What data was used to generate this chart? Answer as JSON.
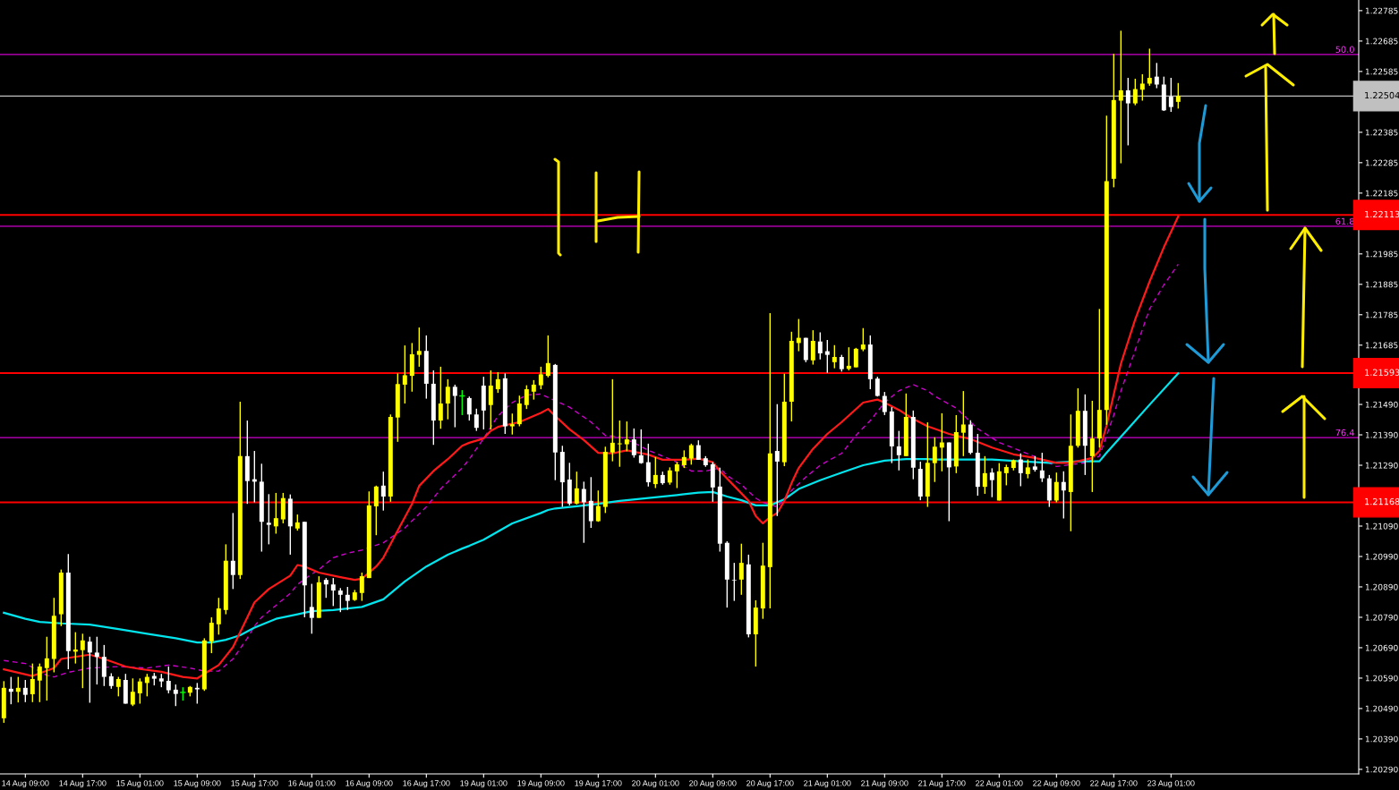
{
  "chart_data": {
    "type": "candlestick",
    "categories": [
      null,
      null,
      null,
      "14 Aug 09:00",
      null,
      null,
      null,
      null,
      null,
      null,
      null,
      "14 Aug 17:00",
      null,
      null,
      null,
      null,
      null,
      null,
      null,
      "15 Aug 01:00",
      null,
      null,
      null,
      null,
      null,
      null,
      null,
      "15 Aug 09:00",
      null,
      null,
      null,
      null,
      null,
      null,
      null,
      "15 Aug 17:00",
      null,
      null,
      null,
      null,
      null,
      null,
      null,
      "16 Aug 01:00",
      null,
      null,
      null,
      null,
      null,
      null,
      null,
      "16 Aug 09:00",
      null,
      null,
      null,
      null,
      null,
      null,
      null,
      "16 Aug 17:00",
      null,
      null,
      null,
      null,
      null,
      null,
      null,
      "19 Aug 01:00",
      null,
      null,
      null,
      null,
      null,
      null,
      null,
      "19 Aug 09:00",
      null,
      null,
      null,
      null,
      null,
      null,
      null,
      "19 Aug 17:00",
      null,
      null,
      null,
      null,
      null,
      null,
      null,
      "20 Aug 01:00",
      null,
      null,
      null,
      null,
      null,
      null,
      null,
      "20 Aug 09:00",
      null,
      null,
      null,
      null,
      null,
      null,
      null,
      "20 Aug 17:00",
      null,
      null,
      null,
      null,
      null,
      null,
      null,
      "21 Aug 01:00",
      null,
      null,
      null,
      null,
      null,
      null,
      null,
      "21 Aug 09:00",
      null,
      null,
      null,
      null,
      null,
      null,
      null,
      "21 Aug 17:00",
      null,
      null,
      null,
      null,
      null,
      null,
      null,
      "22 Aug 01:00",
      null,
      null,
      null,
      null,
      null,
      null,
      null,
      "22 Aug 09:00",
      null,
      null,
      null,
      null,
      null,
      null,
      null,
      "22 Aug 17:00",
      null,
      null,
      null,
      null,
      null,
      null,
      null,
      "23 Aug 01:00",
      null
    ],
    "ohlc": [
      [
        1.20458,
        1.2058,
        1.20443,
        1.20558
      ],
      [
        1.20555,
        1.20594,
        1.20504,
        1.20545
      ],
      [
        1.20545,
        1.20594,
        1.2051,
        1.20558
      ],
      [
        1.20558,
        1.20584,
        1.20511,
        1.20535
      ],
      [
        1.20537,
        1.20638,
        1.20511,
        1.20587
      ],
      [
        1.20582,
        1.20638,
        1.20511,
        1.20628
      ],
      [
        1.20623,
        1.20726,
        1.20516,
        1.20655
      ],
      [
        1.20653,
        1.20854,
        1.20609,
        1.20795
      ],
      [
        1.208,
        1.20947,
        1.20761,
        1.20937
      ],
      [
        1.20937,
        1.20998,
        1.20619,
        1.20679
      ],
      [
        1.20677,
        1.20741,
        1.20638,
        1.20684
      ],
      [
        1.20682,
        1.20736,
        1.20557,
        1.20714
      ],
      [
        1.2071,
        1.20726,
        1.20509,
        1.20674
      ],
      [
        1.20674,
        1.20726,
        1.20569,
        1.2066
      ],
      [
        1.2066,
        1.20699,
        1.20564,
        1.20594
      ],
      [
        1.20596,
        1.20606,
        1.20555,
        1.20564
      ],
      [
        1.20561,
        1.20594,
        1.2053,
        1.20587
      ],
      [
        1.20584,
        1.20604,
        1.20506,
        1.20506
      ],
      [
        1.20503,
        1.20589,
        1.20498,
        1.20545
      ],
      [
        1.2054,
        1.20589,
        1.20506,
        1.20579
      ],
      [
        1.20574,
        1.20604,
        1.2053,
        1.20594
      ],
      [
        1.20597,
        1.20607,
        1.20566,
        1.20588
      ],
      [
        1.20589,
        1.20604,
        1.2056,
        1.20579
      ],
      [
        1.20581,
        1.20628,
        1.2054,
        1.2055
      ],
      [
        1.20552,
        1.20569,
        1.20498,
        1.20538
      ],
      [
        1.20543,
        1.2056,
        1.20516,
        1.20543
      ],
      [
        1.20542,
        1.20564,
        1.2053,
        1.20561
      ],
      [
        1.20558,
        1.20574,
        1.20506,
        1.20553
      ],
      [
        1.20553,
        1.20721,
        1.20548,
        1.20714
      ],
      [
        1.20711,
        1.2079,
        1.20672,
        1.20772
      ],
      [
        1.20767,
        1.20854,
        1.20733,
        1.20819
      ],
      [
        1.20814,
        1.2103,
        1.208,
        1.20976
      ],
      [
        1.20976,
        1.21133,
        1.20883,
        1.20929
      ],
      [
        1.20929,
        1.21499,
        1.20916,
        1.2132
      ],
      [
        1.2132,
        1.21437,
        1.21163,
        1.21238
      ],
      [
        1.21244,
        1.21337,
        1.21168,
        1.21236
      ],
      [
        1.21236,
        1.21295,
        1.21006,
        1.21104
      ],
      [
        1.21101,
        1.21195,
        1.2103,
        1.21094
      ],
      [
        1.21089,
        1.21199,
        1.21065,
        1.21116
      ],
      [
        1.21112,
        1.21199,
        1.21099,
        1.21182
      ],
      [
        1.2118,
        1.21194,
        1.20996,
        1.21089
      ],
      [
        1.21082,
        1.21128,
        1.21075,
        1.21102
      ],
      [
        1.21104,
        1.21104,
        1.2079,
        1.20895
      ],
      [
        1.20824,
        1.209,
        1.20736,
        1.20788
      ],
      [
        1.20788,
        1.20925,
        1.20788,
        1.20905
      ],
      [
        1.20913,
        1.20919,
        1.20854,
        1.20898
      ],
      [
        1.20898,
        1.20919,
        1.20827,
        1.20878
      ],
      [
        1.20878,
        1.20886,
        1.20807,
        1.20864
      ],
      [
        1.20864,
        1.2089,
        1.20814,
        1.20844
      ],
      [
        1.20847,
        1.2088,
        1.20844,
        1.20872
      ],
      [
        1.2087,
        1.20937,
        1.20844,
        1.20925
      ],
      [
        1.20919,
        1.21204,
        1.20919,
        1.21158
      ],
      [
        1.21155,
        1.21223,
        1.2106,
        1.2122
      ],
      [
        1.21223,
        1.21269,
        1.21141,
        1.21187
      ],
      [
        1.21187,
        1.21457,
        1.2117,
        1.21449
      ],
      [
        1.21447,
        1.21592,
        1.21367,
        1.21557
      ],
      [
        1.21555,
        1.21684,
        1.21493,
        1.21586
      ],
      [
        1.21584,
        1.21692,
        1.21532,
        1.21655
      ],
      [
        1.21653,
        1.21743,
        1.21614,
        1.21666
      ],
      [
        1.21666,
        1.21717,
        1.21509,
        1.21558
      ],
      [
        1.21558,
        1.21602,
        1.21357,
        1.21437
      ],
      [
        1.21437,
        1.21614,
        1.2141,
        1.21493
      ],
      [
        1.21493,
        1.21573,
        1.21441,
        1.21548
      ],
      [
        1.21548,
        1.21555,
        1.21415,
        1.21518
      ],
      [
        1.21518,
        1.21537,
        1.21455,
        1.21518
      ],
      [
        1.21511,
        1.21516,
        1.21437,
        1.21457
      ],
      [
        1.21457,
        1.21476,
        1.21403,
        1.21413
      ],
      [
        1.21552,
        1.21581,
        1.21408,
        1.2147
      ],
      [
        1.21488,
        1.21602,
        1.21408,
        1.21552
      ],
      [
        1.2154,
        1.21596,
        1.21528,
        1.21573
      ],
      [
        1.21576,
        1.21592,
        1.21393,
        1.21418
      ],
      [
        1.21418,
        1.2146,
        1.21391,
        1.21425
      ],
      [
        1.21425,
        1.21519,
        1.21418,
        1.21493
      ],
      [
        1.21488,
        1.21553,
        1.21475,
        1.2154
      ],
      [
        1.21532,
        1.2157,
        1.21506,
        1.21555
      ],
      [
        1.21553,
        1.21614,
        1.2154,
        1.21589
      ],
      [
        1.21584,
        1.21717,
        1.21579,
        1.21626
      ],
      [
        1.2162,
        1.21623,
        1.21241,
        1.21332
      ],
      [
        1.21334,
        1.21354,
        1.21153,
        1.21234
      ],
      [
        1.21243,
        1.21298,
        1.21158,
        1.21164
      ],
      [
        1.21164,
        1.21269,
        1.21161,
        1.21214
      ],
      [
        1.21212,
        1.21236,
        1.21035,
        1.21168
      ],
      [
        1.21173,
        1.21251,
        1.21084,
        1.21106
      ],
      [
        1.21106,
        1.21207,
        1.21104,
        1.21156
      ],
      [
        1.21153,
        1.21351,
        1.21133,
        1.21334
      ],
      [
        1.21332,
        1.21573,
        1.21303,
        1.21364
      ],
      [
        1.21359,
        1.21437,
        1.21285,
        1.21362
      ],
      [
        1.21359,
        1.21434,
        1.21336,
        1.21375
      ],
      [
        1.21375,
        1.21411,
        1.21315,
        1.21323
      ],
      [
        1.21323,
        1.21408,
        1.21295,
        1.21297
      ],
      [
        1.213,
        1.21361,
        1.2122,
        1.21234
      ],
      [
        1.21228,
        1.21317,
        1.21215,
        1.21258
      ],
      [
        1.21258,
        1.21269,
        1.21226,
        1.21231
      ],
      [
        1.21233,
        1.21283,
        1.21226,
        1.21273
      ],
      [
        1.2127,
        1.213,
        1.21215,
        1.21293
      ],
      [
        1.2129,
        1.21339,
        1.21281,
        1.21317
      ],
      [
        1.21312,
        1.21361,
        1.21292,
        1.21356
      ],
      [
        1.21356,
        1.21372,
        1.21308,
        1.21308
      ],
      [
        1.21313,
        1.2132,
        1.21285,
        1.2129
      ],
      [
        1.21293,
        1.213,
        1.2117,
        1.21217
      ],
      [
        1.2122,
        1.21282,
        1.21006,
        1.21032
      ],
      [
        1.21035,
        1.2104,
        1.20822,
        1.20914
      ],
      [
        1.20913,
        1.20969,
        1.20844,
        1.20911
      ],
      [
        1.20914,
        1.21032,
        1.20864,
        1.20969
      ],
      [
        1.20964,
        1.20996,
        1.20724,
        1.20734
      ],
      [
        1.20734,
        1.20846,
        1.20628,
        1.20822
      ],
      [
        1.20819,
        1.21035,
        1.20785,
        1.2096
      ],
      [
        1.20955,
        1.2179,
        1.20819,
        1.21329
      ],
      [
        1.21337,
        1.21491,
        1.21123,
        1.21302
      ],
      [
        1.213,
        1.21591,
        1.21287,
        1.21499
      ],
      [
        1.21499,
        1.21729,
        1.21434,
        1.21699
      ],
      [
        1.21692,
        1.21771,
        1.21665,
        1.21709
      ],
      [
        1.21709,
        1.21709,
        1.21629,
        1.21636
      ],
      [
        1.21635,
        1.21734,
        1.21621,
        1.21699
      ],
      [
        1.21697,
        1.21727,
        1.21638,
        1.21658
      ],
      [
        1.21665,
        1.21702,
        1.21594,
        1.21653
      ],
      [
        1.21629,
        1.21685,
        1.21609,
        1.21646
      ],
      [
        1.21646,
        1.21653,
        1.21598,
        1.21606
      ],
      [
        1.21607,
        1.21678,
        1.21602,
        1.21617
      ],
      [
        1.21612,
        1.21676,
        1.21612,
        1.21673
      ],
      [
        1.21671,
        1.21741,
        1.21665,
        1.21687
      ],
      [
        1.21687,
        1.21717,
        1.2154,
        1.21573
      ],
      [
        1.21575,
        1.21581,
        1.21516,
        1.21518
      ],
      [
        1.21518,
        1.21531,
        1.21455,
        1.21465
      ],
      [
        1.21467,
        1.21481,
        1.21297,
        1.21352
      ],
      [
        1.21352,
        1.21403,
        1.21273,
        1.21323
      ],
      [
        1.2132,
        1.21526,
        1.2132,
        1.21449
      ],
      [
        1.21449,
        1.2147,
        1.21244,
        1.21282
      ],
      [
        1.21278,
        1.21302,
        1.21175,
        1.21187
      ],
      [
        1.21187,
        1.21431,
        1.21153,
        1.21298
      ],
      [
        1.21297,
        1.21382,
        1.21235,
        1.21351
      ],
      [
        1.21348,
        1.21461,
        1.2127,
        1.21365
      ],
      [
        1.21365,
        1.21365,
        1.21106,
        1.21283
      ],
      [
        1.21286,
        1.21455,
        1.21264,
        1.21399
      ],
      [
        1.21397,
        1.21534,
        1.2132,
        1.21424
      ],
      [
        1.21424,
        1.21438,
        1.21326,
        1.21331
      ],
      [
        1.21331,
        1.21393,
        1.2119,
        1.21219
      ],
      [
        1.21219,
        1.2132,
        1.21196,
        1.21264
      ],
      [
        1.21266,
        1.2128,
        1.21185,
        1.21241
      ],
      [
        1.21174,
        1.21297,
        1.21174,
        1.2127
      ],
      [
        1.21264,
        1.21292,
        1.21224,
        1.21284
      ],
      [
        1.21281,
        1.21309,
        1.21273,
        1.21306
      ],
      [
        1.21309,
        1.21329,
        1.21221,
        1.21264
      ],
      [
        1.21261,
        1.21309,
        1.21247,
        1.21283
      ],
      [
        1.21286,
        1.2132,
        1.21269,
        1.21275
      ],
      [
        1.21273,
        1.21331,
        1.21235,
        1.21247
      ],
      [
        1.21247,
        1.21258,
        1.21153,
        1.21174
      ],
      [
        1.21174,
        1.21266,
        1.21168,
        1.21235
      ],
      [
        1.21235,
        1.2127,
        1.21115,
        1.21207
      ],
      [
        1.21202,
        1.21457,
        1.21073,
        1.21354
      ],
      [
        1.21354,
        1.21543,
        1.21348,
        1.21469
      ],
      [
        1.21469,
        1.21523,
        1.21258,
        1.21354
      ],
      [
        1.2132,
        1.21502,
        1.21202,
        1.21378
      ],
      [
        1.21378,
        1.21804,
        1.21348,
        1.21472
      ],
      [
        1.21472,
        1.2244,
        1.21423,
        1.22224
      ],
      [
        1.22232,
        1.22643,
        1.22204,
        1.22491
      ],
      [
        1.22489,
        1.22719,
        1.22283,
        1.22523
      ],
      [
        1.22523,
        1.22564,
        1.22342,
        1.2248
      ],
      [
        1.2248,
        1.22561,
        1.22474,
        1.22527
      ],
      [
        1.22525,
        1.22576,
        1.22489,
        1.22545
      ],
      [
        1.22545,
        1.2266,
        1.22538,
        1.22564
      ],
      [
        1.22568,
        1.22613,
        1.2253,
        1.22542
      ],
      [
        1.22542,
        1.22568,
        1.22455,
        1.22457
      ],
      [
        1.22502,
        1.22564,
        1.22452,
        1.22468
      ],
      [
        1.22485,
        1.22547,
        1.22463,
        1.22504
      ]
    ],
    "colors": [
      "#ffff00",
      "#ffffff",
      "#ffff00",
      "#ffffff",
      "#ffff00",
      "#ffff00",
      "#ffff00",
      "#ffff00",
      "#ffff00",
      "#ffffff",
      "#ffff00",
      "#ffff00",
      "#ffffff",
      "#ffffff",
      "#ffffff",
      "#ffffff",
      "#ffff00",
      "#ffffff",
      "#ffff00",
      "#ffff00",
      "#ffff00",
      "#ffffff",
      "#ffffff",
      "#ffffff",
      "#ffffff",
      "#00ff00",
      "#ffff00",
      "#ffffff",
      "#ffff00",
      "#ffff00",
      "#ffff00",
      "#ffff00",
      "#ffffff",
      "#ffff00",
      "#ffffff",
      "#ffffff",
      "#ffffff",
      "#ffffff",
      "#ffff00",
      "#ffff00",
      "#ffffff",
      "#ffff00",
      "#ffffff",
      "#ffffff",
      "#ffff00",
      "#ffffff",
      "#ffffff",
      "#ffffff",
      "#ffffff",
      "#ffff00",
      "#ffff00",
      "#ffff00",
      "#ffff00",
      "#ffffff",
      "#ffff00",
      "#ffff00",
      "#ffff00",
      "#ffff00",
      "#ffff00",
      "#ffffff",
      "#ffffff",
      "#ffff00",
      "#ffff00",
      "#ffffff",
      "#00ff00",
      "#ffffff",
      "#ffffff",
      "#ffffff",
      "#ffff00",
      "#ffff00",
      "#ffffff",
      "#ffff00",
      "#ffff00",
      "#ffff00",
      "#ffff00",
      "#ffff00",
      "#ffff00",
      "#ffffff",
      "#ffffff",
      "#ffffff",
      "#ffff00",
      "#ffffff",
      "#ffffff",
      "#ffff00",
      "#ffff00",
      "#ffff00",
      "#ffff00",
      "#ffff00",
      "#ffffff",
      "#ffffff",
      "#ffffff",
      "#ffff00",
      "#ffffff",
      "#ffff00",
      "#ffff00",
      "#ffff00",
      "#ffff00",
      "#ffffff",
      "#ffffff",
      "#ffffff",
      "#ffffff",
      "#ffffff",
      "#ffffff",
      "#ffff00",
      "#ffffff",
      "#ffff00",
      "#ffff00",
      "#ffff00",
      "#ffffff",
      "#ffff00",
      "#ffff00",
      "#ffff00",
      "#ffffff",
      "#ffff00",
      "#ffffff",
      "#ffffff",
      "#ffff00",
      "#ffffff",
      "#ffff00",
      "#ffff00",
      "#ffff00",
      "#ffffff",
      "#ffffff",
      "#ffffff",
      "#ffffff",
      "#ffffff",
      "#ffff00",
      "#ffffff",
      "#ffffff",
      "#ffff00",
      "#ffff00",
      "#ffff00",
      "#ffffff",
      "#ffff00",
      "#ffff00",
      "#ffffff",
      "#ffffff",
      "#ffff00",
      "#ffffff",
      "#ffff00",
      "#ffff00",
      "#ffff00",
      "#ffffff",
      "#ffff00",
      "#ffffff",
      "#ffffff",
      "#ffffff",
      "#ffff00",
      "#ffffff",
      "#ffff00",
      "#ffff00",
      "#ffffff",
      "#ffff00",
      "#ffff00",
      "#ffff00",
      "#ffff00",
      "#ffff00",
      "#ffffff",
      "#ffff00",
      "#ffff00",
      "#ffff00",
      "#ffffff",
      "#ffffff",
      "#ffffff",
      "#ffff00"
    ],
    "series": [
      {
        "type": "line",
        "color": "#cc00cc",
        "line_style": "dashed",
        "values": [
          1.20648,
          null,
          null,
          1.20638,
          null,
          null,
          1.20599,
          1.20594,
          null,
          1.20609,
          null,
          null,
          1.20623,
          null,
          null,
          null,
          1.20628,
          null,
          null,
          null,
          1.20623,
          null,
          null,
          1.20633,
          null,
          null,
          1.20623,
          null,
          1.20613,
          null,
          1.20613,
          null,
          1.20653,
          null,
          1.20721,
          1.20761,
          1.2079,
          null,
          1.20829,
          null,
          1.20869,
          1.20898,
          null,
          1.20932,
          1.20947,
          null,
          1.20986,
          null,
          1.21001,
          null,
          1.21011,
          null,
          1.21027,
          1.21035,
          null,
          null,
          1.21084,
          null,
          null,
          1.21153,
          null,
          1.21212,
          null,
          null,
          1.21281,
          1.2131,
          null,
          1.21378,
          null,
          1.21452,
          null,
          1.21496,
          null,
          1.21521,
          null,
          1.21524,
          null,
          null,
          null,
          1.21481,
          null,
          null,
          1.21432,
          null,
          1.21388,
          null,
          1.21383,
          null,
          1.21364,
          null,
          1.21339,
          null,
          1.2132,
          null,
          1.213,
          null,
          1.21271,
          null,
          1.21271,
          null,
          1.21281,
          1.21256,
          null,
          1.21226,
          null,
          1.21182,
          1.21168,
          null,
          1.21153,
          null,
          1.21207,
          null,
          1.21251,
          null,
          1.2129,
          null,
          null,
          1.21329,
          null,
          1.21388,
          null,
          1.21437,
          null,
          1.21496,
          null,
          1.21535,
          null,
          1.21555,
          null,
          1.21535,
          1.21517,
          null,
          null,
          1.21478,
          null,
          null,
          1.2141,
          null,
          null,
          1.21365,
          null,
          null,
          1.21337,
          null,
          null,
          1.21309,
          null,
          1.21286,
          null,
          null,
          null,
          1.21298,
          null,
          1.2132,
          1.21387,
          1.21455,
          1.21534,
          null,
          1.21669,
          null,
          1.21804,
          null,
          1.21883,
          null,
          1.21951
        ]
      },
      {
        "type": "line",
        "color": "#00e5ee",
        "values": [
          1.20805,
          null,
          null,
          1.20785,
          null,
          1.20775,
          null,
          null,
          1.2077,
          null,
          null,
          null,
          1.20766,
          null,
          null,
          null,
          1.20751,
          null,
          null,
          null,
          1.20736,
          null,
          null,
          null,
          1.20721,
          null,
          null,
          1.20707,
          null,
          1.20707,
          null,
          1.20716,
          null,
          1.20731,
          null,
          1.20756,
          null,
          null,
          1.20785,
          null,
          null,
          1.208,
          null,
          1.2081,
          null,
          null,
          1.20814,
          null,
          null,
          null,
          1.20824,
          null,
          null,
          1.20849,
          null,
          null,
          1.20908,
          null,
          null,
          1.20957,
          null,
          null,
          1.20996,
          null,
          1.21016,
          1.21025,
          null,
          1.21045,
          null,
          null,
          null,
          1.21099,
          null,
          null,
          null,
          1.21133,
          1.21143,
          1.21148,
          null,
          null,
          1.21155,
          null,
          null,
          1.21163,
          null,
          null,
          1.21173,
          null,
          null,
          null,
          1.21182,
          null,
          null,
          null,
          1.21192,
          null,
          null,
          1.212,
          null,
          1.21202,
          null,
          1.21187,
          null,
          1.21175,
          null,
          1.21158,
          null,
          1.21158,
          null,
          1.21178,
          null,
          1.21212,
          null,
          null,
          1.21241,
          null,
          null,
          1.21266,
          null,
          null,
          1.2129,
          null,
          null,
          1.21305,
          null,
          null,
          1.2131,
          null,
          null,
          1.2131,
          1.21309,
          null,
          null,
          null,
          1.21309,
          null,
          null,
          null,
          1.21309,
          null,
          null,
          null,
          1.21303,
          null,
          null,
          null,
          1.21298,
          null,
          null,
          null,
          1.21303,
          null,
          null,
          1.21303,
          1.21331,
          null,
          null,
          1.2141,
          null,
          null,
          1.21489,
          null,
          null,
          null,
          1.21592
        ]
      },
      {
        "type": "line",
        "color": "#ff1a1a",
        "values": [
          1.20619,
          null,
          null,
          null,
          1.20597,
          null,
          null,
          1.20623,
          1.20653,
          null,
          null,
          null,
          1.20667,
          null,
          1.20653,
          null,
          null,
          1.20628,
          null,
          1.2062,
          null,
          null,
          1.20611,
          null,
          null,
          1.20594,
          null,
          1.20589,
          1.20604,
          null,
          1.20633,
          null,
          1.20692,
          null,
          1.2079,
          1.20839,
          null,
          1.20883,
          null,
          null,
          1.20927,
          1.20962,
          1.20957,
          null,
          1.20937,
          null,
          null,
          1.20922,
          null,
          1.20913,
          1.20917,
          null,
          1.20957,
          1.20986,
          null,
          1.21075,
          null,
          1.21163,
          1.21222,
          null,
          1.21271,
          null,
          1.2131,
          null,
          1.21354,
          1.21364,
          null,
          1.21378,
          1.21403,
          1.21416,
          null,
          null,
          1.21432,
          null,
          null,
          1.21462,
          1.21475,
          1.21452,
          null,
          1.21408,
          null,
          1.21373,
          null,
          1.21331,
          null,
          1.21329,
          null,
          1.21339,
          null,
          null,
          1.21325,
          null,
          1.21308,
          null,
          null,
          1.21308,
          null,
          1.21312,
          null,
          1.213,
          1.21271,
          null,
          1.21222,
          null,
          1.21173,
          1.21123,
          1.21099,
          1.21119,
          1.21133,
          1.21173,
          1.21231,
          1.21281,
          null,
          1.21344,
          null,
          1.21393,
          null,
          1.21432,
          null,
          null,
          1.21496,
          null,
          1.21506,
          1.21496,
          null,
          1.21472,
          null,
          1.21442,
          null,
          1.21418,
          1.2141,
          null,
          1.21393,
          null,
          null,
          1.21376,
          null,
          null,
          1.21348,
          null,
          null,
          1.21326,
          null,
          null,
          1.21314,
          null,
          null,
          1.21298,
          null,
          1.21298,
          null,
          null,
          1.21314,
          1.21337,
          1.21421,
          1.21523,
          1.21624,
          null,
          1.2177,
          null,
          1.21894,
          null,
          1.22007,
          null,
          1.22108
        ]
      }
    ],
    "ylim": [
      1.20275,
      1.2282
    ],
    "yticks": [
      1.22785,
      1.22685,
      1.22585,
      1.22385,
      1.22285,
      1.22185,
      1.21985,
      1.21885,
      1.21785,
      1.21685,
      {
        "value": 1.2149,
        "label": "1.21490"
      },
      {
        "value": 1.2139,
        "label": "1.21390"
      },
      {
        "value": 1.2129,
        "label": "1.21290"
      },
      {
        "value": 1.2109,
        "label": "1.21090"
      },
      {
        "value": 1.2099,
        "label": "1.20990"
      },
      {
        "value": 1.2089,
        "label": "1.20890"
      },
      {
        "value": 1.2079,
        "label": "1.20790"
      },
      {
        "value": 1.2069,
        "label": "1.20690"
      },
      {
        "value": 1.2059,
        "label": "1.20590"
      },
      {
        "value": 1.2049,
        "label": "1.20490"
      },
      {
        "value": 1.2039,
        "label": "1.20390"
      },
      {
        "value": 1.2029,
        "label": "1.20290"
      }
    ],
    "ref_lines": [
      {
        "axis": "y",
        "value": 1.22641,
        "color": "#cc00cc",
        "line_style": "solid"
      },
      {
        "axis": "y",
        "value": 1.22076,
        "color": "#cc00cc",
        "line_style": "solid"
      },
      {
        "axis": "y",
        "value": 1.21381,
        "color": "#cc00cc",
        "line_style": "solid"
      },
      {
        "axis": "y",
        "value": 1.22504,
        "label": "1.22504",
        "color": "#c0c0c0",
        "line_style": "solid"
      },
      {
        "axis": "y",
        "value": 1.22113,
        "label": "1.22113",
        "color": "#ff0000",
        "line_style": "solid"
      },
      {
        "axis": "y",
        "value": 1.21593,
        "label": "1.21593",
        "color": "#ff0000",
        "line_style": "solid"
      },
      {
        "axis": "y",
        "value": 1.21168,
        "label": "1.21168",
        "color": "#ff0000",
        "line_style": "solid"
      }
    ],
    "annotations": [
      {
        "text": "50.0",
        "y": 1.22641
      },
      {
        "text": "61.8",
        "y": 1.22076
      },
      {
        "text": "76.4",
        "y": 1.21381
      }
    ]
  }
}
